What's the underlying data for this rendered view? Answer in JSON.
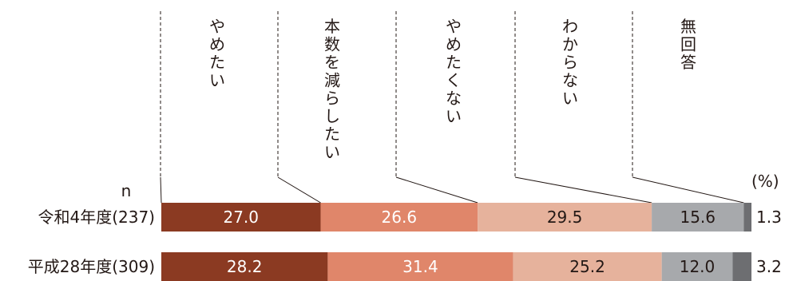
{
  "chart_data": {
    "type": "bar",
    "orientation": "horizontal",
    "stacked": true,
    "percent_stacked": true,
    "unit_label": "(%)",
    "n_label": "n",
    "categories": [
      "令和4年度(237)",
      "平成28年度(309)"
    ],
    "series": [
      {
        "name": "やめたい",
        "values": [
          27.0,
          28.2
        ],
        "color": "#8b3a22",
        "label_color": "#ffffff"
      },
      {
        "name": "本数を減らしたい",
        "values": [
          26.6,
          31.4
        ],
        "color": "#e0866a",
        "label_color": "#ffffff"
      },
      {
        "name": "やめたくない",
        "values": [
          29.5,
          25.2
        ],
        "color": "#e6b29c",
        "label_color": "#231815"
      },
      {
        "name": "わからない",
        "values": [
          15.6,
          12.0
        ],
        "color": "#a7a9ac",
        "label_color": "#231815"
      },
      {
        "name": "無回答",
        "values": [
          1.3,
          3.2
        ],
        "color": "#6d6e71",
        "label_color": "#231815"
      }
    ],
    "xlim": [
      0,
      100
    ],
    "legend": "top (vertical headers with dashed leader lines)"
  }
}
